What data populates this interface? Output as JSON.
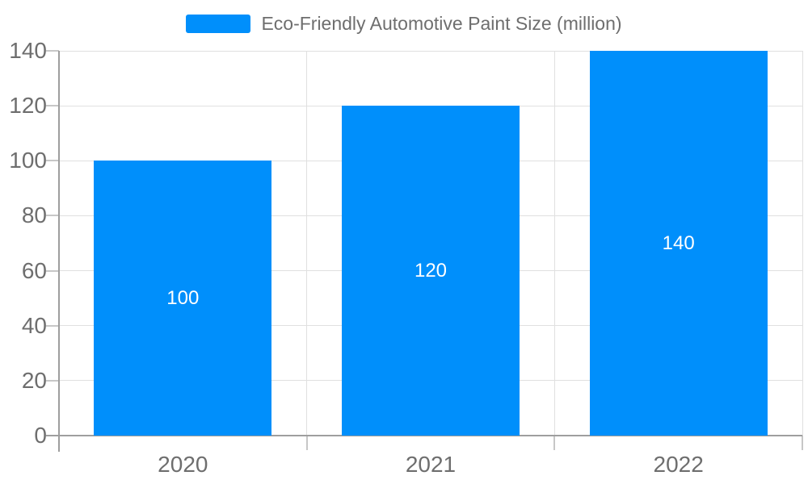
{
  "legend": {
    "label": "Eco-Friendly Automotive Paint Size (million)"
  },
  "colors": {
    "bar": "#008FFB",
    "grid": "#e0e0e0",
    "axis": "#9e9e9e",
    "tick": "#c7c7c7",
    "axis_label": "#6e6e6e",
    "legend_text": "#6e6e6e",
    "bar_label": "#ffffff",
    "background": "#ffffff"
  },
  "chart_data": {
    "type": "bar",
    "title": "Eco-Friendly Automotive Paint Size (million)",
    "categories": [
      "2020",
      "2021",
      "2022"
    ],
    "series": [
      {
        "name": "Eco-Friendly Automotive Paint Size (million)",
        "values": [
          100,
          120,
          140
        ]
      }
    ],
    "data_labels": [
      "100",
      "120",
      "140"
    ],
    "yticks": [
      0,
      20,
      40,
      60,
      80,
      100,
      120,
      140
    ],
    "ylim": [
      0,
      140
    ],
    "xlabel": "",
    "ylabel": "",
    "grid": "on",
    "legend_position": "top"
  }
}
